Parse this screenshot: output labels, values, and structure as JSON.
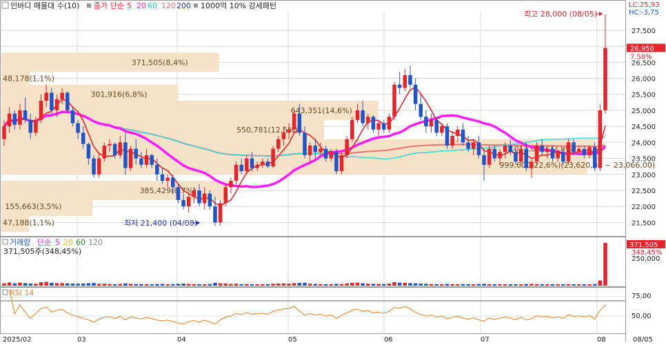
{
  "header": {
    "checkbox": "",
    "title": "인바디 매물대 수(10)",
    "ma_prefix": "종가 단순",
    "ma_periods": [
      "5",
      "20",
      "60",
      "120",
      "200"
    ],
    "vol_profile_label": "1000억 10% 강세패턴"
  },
  "price_axis": {
    "lc_label": "LC:25,93",
    "hc_label": "HC:-3,75",
    "ticks": [
      "27,500",
      "27,000",
      "26,500",
      "26,000",
      "25,500",
      "25,000",
      "24,500",
      "24,000",
      "23,500",
      "23,000",
      "22,500",
      "22,000",
      "21,500"
    ],
    "current_price": "26,950",
    "current_change": "7.58%"
  },
  "annotations": {
    "high": "최고 28,000 (08/05)",
    "low": "최저 21,400 (04/08)"
  },
  "volume_panel": {
    "legend_prefix": "거래량",
    "legend_ma": "단순",
    "legend_periods": [
      "5",
      "20",
      "60",
      "120"
    ],
    "current_volume": "371,505주(348,45%)",
    "axis_value": "371,505",
    "axis_pct": "348,45%",
    "axis_tick": "250,000"
  },
  "rsi_panel": {
    "label": "RSI 14",
    "ticks": [
      "75,00",
      "50,00"
    ]
  },
  "x_axis": {
    "labels": [
      "2025/02",
      "03",
      "04",
      "05",
      "06",
      "07",
      "08",
      "08/05"
    ]
  },
  "colors": {
    "up": "#e8242b",
    "down": "#1f55c8",
    "ma5": "#e8242b",
    "ma20": "#ff1aff",
    "ma60": "#33dde0",
    "ma120": "#f07070",
    "ma200": "#1f2fc8",
    "profile": "#f6e2c7",
    "rsi": "#f08020",
    "grid": "#d8d8d8"
  },
  "chart_data": {
    "type": "candlestick",
    "y_range": [
      21250,
      28100
    ],
    "volume_profile": [
      {
        "label": "47,188(1,1%)",
        "price": 21500
      },
      {
        "label": "155,663(3,5%)",
        "price": 22000
      },
      {
        "label": "385,429(8,7%)",
        "price": 22500
      },
      {
        "label": "999,600(22,6%)(23,620,00 ~ 23,066,00)",
        "price": 23300
      },
      {
        "label": "1,012,036(22,8%)",
        "price": 23800
      },
      {
        "label": "550,781(12,5%)",
        "price": 24400
      },
      {
        "label": "643,351(14,6%)",
        "price": 25000
      },
      {
        "label": "301,916(6,8%)",
        "price": 25500
      },
      {
        "label": "48,178(1,1%)",
        "price": 26000
      },
      {
        "label": "371,505(8,4%)",
        "price": 26500
      }
    ],
    "candles": [
      {
        "o": 24100,
        "h": 24700,
        "l": 23900,
        "c": 24500,
        "v": 21000
      },
      {
        "o": 24500,
        "h": 25100,
        "l": 24300,
        "c": 24900,
        "v": 28000
      },
      {
        "o": 24900,
        "h": 25000,
        "l": 24400,
        "c": 24550,
        "v": 20000
      },
      {
        "o": 24550,
        "h": 25200,
        "l": 24400,
        "c": 25000,
        "v": 26000
      },
      {
        "o": 25000,
        "h": 25400,
        "l": 24600,
        "c": 24700,
        "v": 22000
      },
      {
        "o": 24700,
        "h": 24900,
        "l": 24100,
        "c": 24300,
        "v": 18000
      },
      {
        "o": 24300,
        "h": 24800,
        "l": 24200,
        "c": 24700,
        "v": 17000
      },
      {
        "o": 24700,
        "h": 25500,
        "l": 24600,
        "c": 25300,
        "v": 30000
      },
      {
        "o": 25300,
        "h": 25800,
        "l": 25100,
        "c": 25550,
        "v": 33000
      },
      {
        "o": 25550,
        "h": 25700,
        "l": 24900,
        "c": 25000,
        "v": 25000
      },
      {
        "o": 25000,
        "h": 25500,
        "l": 24800,
        "c": 25350,
        "v": 21000
      },
      {
        "o": 25350,
        "h": 25700,
        "l": 25200,
        "c": 25550,
        "v": 22000
      },
      {
        "o": 25550,
        "h": 25600,
        "l": 24900,
        "c": 25000,
        "v": 20000
      },
      {
        "o": 25000,
        "h": 25100,
        "l": 24500,
        "c": 24600,
        "v": 18000
      },
      {
        "o": 24600,
        "h": 24700,
        "l": 24100,
        "c": 24300,
        "v": 17000
      },
      {
        "o": 24300,
        "h": 24500,
        "l": 23800,
        "c": 23950,
        "v": 19000
      },
      {
        "o": 23950,
        "h": 24000,
        "l": 23300,
        "c": 23500,
        "v": 21000
      },
      {
        "o": 23500,
        "h": 23600,
        "l": 22900,
        "c": 23000,
        "v": 23000
      },
      {
        "o": 23000,
        "h": 23700,
        "l": 22900,
        "c": 23500,
        "v": 16000
      },
      {
        "o": 23500,
        "h": 24000,
        "l": 23400,
        "c": 23900,
        "v": 17000
      },
      {
        "o": 23900,
        "h": 24100,
        "l": 23700,
        "c": 23950,
        "v": 14000
      },
      {
        "o": 23950,
        "h": 24000,
        "l": 23500,
        "c": 23600,
        "v": 13000
      },
      {
        "o": 23600,
        "h": 24200,
        "l": 23500,
        "c": 24000,
        "v": 15000
      },
      {
        "o": 24000,
        "h": 24300,
        "l": 23000,
        "c": 23200,
        "v": 20000
      },
      {
        "o": 23200,
        "h": 23900,
        "l": 23100,
        "c": 23800,
        "v": 16000
      },
      {
        "o": 23800,
        "h": 24100,
        "l": 23300,
        "c": 23500,
        "v": 14000
      },
      {
        "o": 23500,
        "h": 23700,
        "l": 23200,
        "c": 23300,
        "v": 13000
      },
      {
        "o": 23300,
        "h": 23800,
        "l": 23200,
        "c": 23600,
        "v": 12000
      },
      {
        "o": 23600,
        "h": 23650,
        "l": 23200,
        "c": 23300,
        "v": 12000
      },
      {
        "o": 23300,
        "h": 23500,
        "l": 22800,
        "c": 23000,
        "v": 14000
      },
      {
        "o": 23000,
        "h": 23200,
        "l": 22700,
        "c": 22800,
        "v": 15000
      },
      {
        "o": 22800,
        "h": 23000,
        "l": 22600,
        "c": 22900,
        "v": 11000
      },
      {
        "o": 22900,
        "h": 23000,
        "l": 22400,
        "c": 22600,
        "v": 13000
      },
      {
        "o": 22600,
        "h": 22700,
        "l": 22100,
        "c": 22200,
        "v": 16000
      },
      {
        "o": 22200,
        "h": 22400,
        "l": 21900,
        "c": 22000,
        "v": 18000
      },
      {
        "o": 22000,
        "h": 22400,
        "l": 21800,
        "c": 22300,
        "v": 15000
      },
      {
        "o": 22300,
        "h": 22600,
        "l": 22100,
        "c": 22500,
        "v": 12000
      },
      {
        "o": 22500,
        "h": 22700,
        "l": 22000,
        "c": 22100,
        "v": 11000
      },
      {
        "o": 22100,
        "h": 22600,
        "l": 21900,
        "c": 22400,
        "v": 12000
      },
      {
        "o": 22400,
        "h": 22500,
        "l": 21900,
        "c": 22000,
        "v": 14000
      },
      {
        "o": 22000,
        "h": 22300,
        "l": 21400,
        "c": 21500,
        "v": 24000
      },
      {
        "o": 21500,
        "h": 22200,
        "l": 21400,
        "c": 22100,
        "v": 20000
      },
      {
        "o": 22100,
        "h": 22700,
        "l": 22000,
        "c": 22600,
        "v": 19000
      },
      {
        "o": 22600,
        "h": 22900,
        "l": 22400,
        "c": 22800,
        "v": 15000
      },
      {
        "o": 22800,
        "h": 23400,
        "l": 22700,
        "c": 23300,
        "v": 17000
      },
      {
        "o": 23300,
        "h": 23500,
        "l": 23000,
        "c": 23100,
        "v": 13000
      },
      {
        "o": 23100,
        "h": 23600,
        "l": 23000,
        "c": 23500,
        "v": 14000
      },
      {
        "o": 23500,
        "h": 23700,
        "l": 23100,
        "c": 23200,
        "v": 12000
      },
      {
        "o": 23200,
        "h": 23400,
        "l": 23100,
        "c": 23300,
        "v": 11000
      },
      {
        "o": 23300,
        "h": 23500,
        "l": 23200,
        "c": 23400,
        "v": 10000
      },
      {
        "o": 23400,
        "h": 23500,
        "l": 23200,
        "c": 23250,
        "v": 10000
      },
      {
        "o": 23250,
        "h": 23900,
        "l": 23200,
        "c": 23800,
        "v": 16000
      },
      {
        "o": 23800,
        "h": 24200,
        "l": 23700,
        "c": 24100,
        "v": 18000
      },
      {
        "o": 24100,
        "h": 24500,
        "l": 23900,
        "c": 24300,
        "v": 19000
      },
      {
        "o": 24300,
        "h": 24600,
        "l": 24100,
        "c": 24400,
        "v": 17000
      },
      {
        "o": 24400,
        "h": 25000,
        "l": 24300,
        "c": 24900,
        "v": 22000
      },
      {
        "o": 24900,
        "h": 25200,
        "l": 24200,
        "c": 24300,
        "v": 24000
      },
      {
        "o": 24300,
        "h": 24500,
        "l": 23500,
        "c": 23600,
        "v": 25000
      },
      {
        "o": 23600,
        "h": 24000,
        "l": 23400,
        "c": 23900,
        "v": 17000
      },
      {
        "o": 23900,
        "h": 24100,
        "l": 23500,
        "c": 23700,
        "v": 15000
      },
      {
        "o": 23700,
        "h": 24000,
        "l": 23600,
        "c": 23800,
        "v": 13000
      },
      {
        "o": 23800,
        "h": 23900,
        "l": 23400,
        "c": 23500,
        "v": 12000
      },
      {
        "o": 23500,
        "h": 23800,
        "l": 23400,
        "c": 23700,
        "v": 11000
      },
      {
        "o": 23700,
        "h": 23800,
        "l": 23000,
        "c": 23100,
        "v": 16000
      },
      {
        "o": 23100,
        "h": 23700,
        "l": 23000,
        "c": 23600,
        "v": 14000
      },
      {
        "o": 23600,
        "h": 24200,
        "l": 23500,
        "c": 24100,
        "v": 19000
      },
      {
        "o": 24100,
        "h": 24800,
        "l": 24000,
        "c": 24700,
        "v": 24000
      },
      {
        "o": 24700,
        "h": 25200,
        "l": 24600,
        "c": 25000,
        "v": 26000
      },
      {
        "o": 25000,
        "h": 25300,
        "l": 24500,
        "c": 24600,
        "v": 20000
      },
      {
        "o": 24600,
        "h": 24900,
        "l": 24400,
        "c": 24800,
        "v": 17000
      },
      {
        "o": 24800,
        "h": 24850,
        "l": 24300,
        "c": 24400,
        "v": 16000
      },
      {
        "o": 24400,
        "h": 24700,
        "l": 24200,
        "c": 24600,
        "v": 15000
      },
      {
        "o": 24600,
        "h": 24700,
        "l": 24300,
        "c": 24400,
        "v": 14000
      },
      {
        "o": 24400,
        "h": 24900,
        "l": 24300,
        "c": 24800,
        "v": 18000
      },
      {
        "o": 24800,
        "h": 25900,
        "l": 24700,
        "c": 25800,
        "v": 30000
      },
      {
        "o": 25800,
        "h": 26200,
        "l": 25500,
        "c": 25700,
        "v": 26000
      },
      {
        "o": 25700,
        "h": 26300,
        "l": 25600,
        "c": 26100,
        "v": 24000
      },
      {
        "o": 26100,
        "h": 26400,
        "l": 25700,
        "c": 25800,
        "v": 22000
      },
      {
        "o": 25800,
        "h": 26000,
        "l": 25000,
        "c": 25200,
        "v": 20000
      },
      {
        "o": 25200,
        "h": 25500,
        "l": 24700,
        "c": 24800,
        "v": 18000
      },
      {
        "o": 24800,
        "h": 25000,
        "l": 24300,
        "c": 24500,
        "v": 16000
      },
      {
        "o": 24500,
        "h": 24900,
        "l": 24300,
        "c": 24700,
        "v": 14000
      },
      {
        "o": 24700,
        "h": 24800,
        "l": 24200,
        "c": 24300,
        "v": 13000
      },
      {
        "o": 24300,
        "h": 24600,
        "l": 24200,
        "c": 24500,
        "v": 12000
      },
      {
        "o": 24500,
        "h": 24600,
        "l": 23800,
        "c": 23900,
        "v": 15000
      },
      {
        "o": 23900,
        "h": 24300,
        "l": 23800,
        "c": 24200,
        "v": 13000
      },
      {
        "o": 24200,
        "h": 24500,
        "l": 24000,
        "c": 24400,
        "v": 12000
      },
      {
        "o": 24400,
        "h": 24600,
        "l": 23900,
        "c": 24000,
        "v": 13000
      },
      {
        "o": 24000,
        "h": 24200,
        "l": 23700,
        "c": 23800,
        "v": 12000
      },
      {
        "o": 23800,
        "h": 24100,
        "l": 23600,
        "c": 24000,
        "v": 11000
      },
      {
        "o": 24000,
        "h": 24200,
        "l": 23500,
        "c": 23600,
        "v": 14000
      },
      {
        "o": 23600,
        "h": 23800,
        "l": 22800,
        "c": 23300,
        "v": 16000
      },
      {
        "o": 23300,
        "h": 23900,
        "l": 23200,
        "c": 23800,
        "v": 13000
      },
      {
        "o": 23800,
        "h": 23900,
        "l": 23400,
        "c": 23500,
        "v": 11000
      },
      {
        "o": 23500,
        "h": 23800,
        "l": 23300,
        "c": 23700,
        "v": 10000
      },
      {
        "o": 23700,
        "h": 24000,
        "l": 23500,
        "c": 23900,
        "v": 12000
      },
      {
        "o": 23900,
        "h": 24100,
        "l": 23600,
        "c": 23700,
        "v": 11000
      },
      {
        "o": 23700,
        "h": 23800,
        "l": 23300,
        "c": 23400,
        "v": 10000
      },
      {
        "o": 23400,
        "h": 23900,
        "l": 23300,
        "c": 23800,
        "v": 12000
      },
      {
        "o": 23800,
        "h": 24000,
        "l": 23100,
        "c": 23200,
        "v": 14000
      },
      {
        "o": 23200,
        "h": 23500,
        "l": 22900,
        "c": 23400,
        "v": 15000
      },
      {
        "o": 23400,
        "h": 24000,
        "l": 23300,
        "c": 23900,
        "v": 13000
      },
      {
        "o": 23900,
        "h": 24100,
        "l": 23600,
        "c": 23700,
        "v": 11000
      },
      {
        "o": 23700,
        "h": 23900,
        "l": 23500,
        "c": 23800,
        "v": 10000
      },
      {
        "o": 23800,
        "h": 23900,
        "l": 23400,
        "c": 23500,
        "v": 10000
      },
      {
        "o": 23500,
        "h": 23800,
        "l": 23400,
        "c": 23700,
        "v": 9000
      },
      {
        "o": 23700,
        "h": 23800,
        "l": 23300,
        "c": 23400,
        "v": 10000
      },
      {
        "o": 23400,
        "h": 24100,
        "l": 23300,
        "c": 24000,
        "v": 13000
      },
      {
        "o": 24000,
        "h": 24100,
        "l": 23600,
        "c": 23700,
        "v": 11000
      },
      {
        "o": 23700,
        "h": 23900,
        "l": 23600,
        "c": 23800,
        "v": 9000
      },
      {
        "o": 23800,
        "h": 23900,
        "l": 23500,
        "c": 23600,
        "v": 9000
      },
      {
        "o": 23600,
        "h": 23900,
        "l": 23500,
        "c": 23850,
        "v": 10000
      },
      {
        "o": 23850,
        "h": 24000,
        "l": 23100,
        "c": 23200,
        "v": 14000
      },
      {
        "o": 23200,
        "h": 25200,
        "l": 23100,
        "c": 25000,
        "v": 45000
      },
      {
        "o": 25000,
        "h": 28000,
        "l": 24900,
        "c": 26950,
        "v": 371505
      }
    ]
  }
}
